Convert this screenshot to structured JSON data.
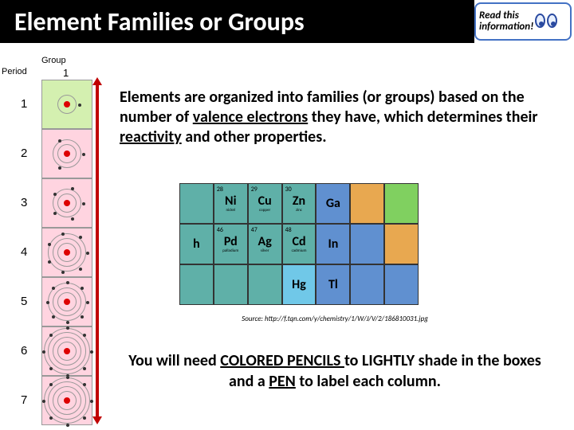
{
  "title": "Element Families or Groups",
  "read_box": {
    "line1": "Read this",
    "line2": "information!"
  },
  "main_text": "Elements are organized into families (or groups) based on the number of valence electrons they have, which determines their reactivity and other properties.",
  "source_line": "Source: http://f.tqn.com/y/chemistry/1/W/J/V/2/186810031.jpg",
  "instruction": "You will need COLORED PENCILS to LIGHTLY shade in the boxes and a PEN to label each column.",
  "side": {
    "group_label": "Group",
    "group_num": "1",
    "period_label": "Period",
    "periods": [
      "1",
      "2",
      "3",
      "4",
      "5",
      "6",
      "7"
    ]
  },
  "pt_colors": {
    "teal": "#5fb0a8",
    "blue": "#6090d0",
    "gray": "#b0b0b0",
    "orange": "#e8a850",
    "yellow": "#f0e068",
    "green": "#80d060",
    "lblue": "#70c8e8"
  },
  "pt_rows": [
    [
      {
        "num": "",
        "sym": "",
        "nm": "",
        "c": "teal"
      },
      {
        "num": "28",
        "sym": "Ni",
        "nm": "nickel",
        "c": "teal"
      },
      {
        "num": "29",
        "sym": "Cu",
        "nm": "copper",
        "c": "teal"
      },
      {
        "num": "30",
        "sym": "Zn",
        "nm": "zinc",
        "c": "teal"
      },
      {
        "num": "",
        "sym": "Ga",
        "nm": "",
        "c": "blue"
      },
      {
        "num": "",
        "sym": "",
        "nm": "",
        "c": "orange"
      },
      {
        "num": "",
        "sym": "",
        "nm": "",
        "c": "green"
      }
    ],
    [
      {
        "num": "",
        "sym": "h",
        "nm": "",
        "c": "teal"
      },
      {
        "num": "46",
        "sym": "Pd",
        "nm": "palladium",
        "c": "teal"
      },
      {
        "num": "47",
        "sym": "Ag",
        "nm": "silver",
        "c": "teal"
      },
      {
        "num": "48",
        "sym": "Cd",
        "nm": "cadmium",
        "c": "teal"
      },
      {
        "num": "",
        "sym": "In",
        "nm": "",
        "c": "blue"
      },
      {
        "num": "",
        "sym": "",
        "nm": "",
        "c": "blue"
      },
      {
        "num": "",
        "sym": "",
        "nm": "",
        "c": "orange"
      }
    ],
    [
      {
        "num": "",
        "sym": "",
        "nm": "",
        "c": "teal"
      },
      {
        "num": "",
        "sym": "",
        "nm": "",
        "c": "teal"
      },
      {
        "num": "",
        "sym": "",
        "nm": "",
        "c": "teal"
      },
      {
        "num": "",
        "sym": "Hg",
        "nm": "",
        "c": "lblue"
      },
      {
        "num": "",
        "sym": "Tl",
        "nm": "",
        "c": "blue"
      },
      {
        "num": "",
        "sym": "",
        "nm": "",
        "c": "blue"
      },
      {
        "num": "",
        "sym": "",
        "nm": "",
        "c": "blue"
      }
    ]
  ]
}
